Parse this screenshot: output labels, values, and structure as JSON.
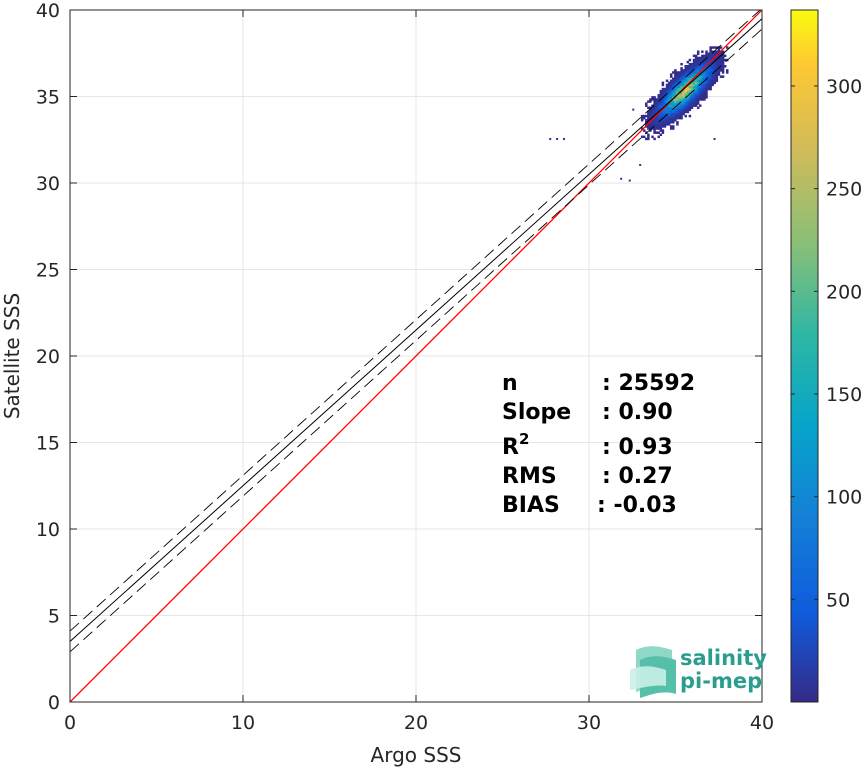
{
  "chart_data": {
    "type": "heatmap",
    "xlabel": "Argo SSS",
    "ylabel": "Satellite SSS",
    "xlim": [
      0,
      40
    ],
    "ylim": [
      0,
      40
    ],
    "xticks": [
      0,
      10,
      20,
      30,
      40
    ],
    "yticks": [
      0,
      5,
      10,
      15,
      20,
      25,
      30,
      35,
      40
    ],
    "grid": true,
    "density_center": [
      35.5,
      35.3
    ],
    "density_extent": {
      "x": [
        33.0,
        38.0
      ],
      "y": [
        32.5,
        37.8
      ]
    },
    "reference_line": {
      "name": "1:1",
      "slope": 1.0,
      "intercept": 0.0,
      "color": "#ff0000"
    },
    "regression_line": {
      "slope": 0.9,
      "intercept": 3.5,
      "color": "#000000"
    },
    "confidence_band": {
      "offset": 0.6,
      "style": "dashed"
    },
    "colorbar": {
      "min": 0,
      "max": 337,
      "ticks": [
        50,
        100,
        150,
        200,
        250,
        300
      ],
      "colormap": "parula"
    },
    "stats": [
      {
        "label": "n",
        "sup": "",
        "value": ": 25592"
      },
      {
        "label": "Slope",
        "sup": "",
        "value": ": 0.90"
      },
      {
        "label": "R",
        "sup": "2",
        "value": ": 0.93"
      },
      {
        "label": "RMS",
        "sup": "",
        "value": ": 0.27"
      },
      {
        "label": "BIAS",
        "sup": "",
        "value": ": -0.03"
      }
    ]
  },
  "logo": {
    "line1": "salinity",
    "line2": "pi-mep",
    "color": "#2a9d8f"
  }
}
